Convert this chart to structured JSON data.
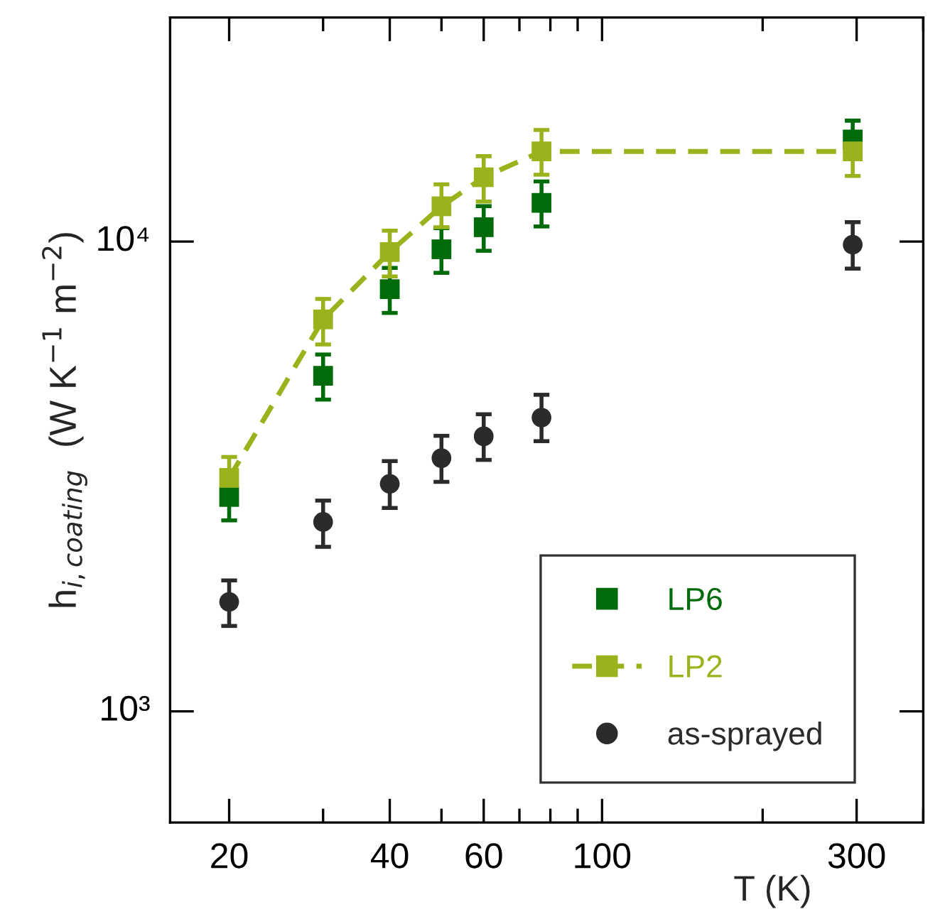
{
  "chart_data": {
    "type": "scatter",
    "xlabel": "T (K)",
    "ylabel": "h$_{i,coating}$  (W K$^{−1}$ m$^{−2}$)",
    "log": "xy",
    "xlim": [
      15.5,
      400
    ],
    "ylim": [
      580,
      30000
    ],
    "xticks": [
      20,
      40,
      60,
      100,
      300
    ],
    "yticks": [
      {
        "value": 1000,
        "label": "10³"
      },
      {
        "value": 10000,
        "label": "10⁴"
      }
    ],
    "grid": false,
    "legend": "bottom right",
    "series": [
      {
        "name": "LP6",
        "marker": "square",
        "color": "#006b0a",
        "x": [
          20,
          30,
          40,
          50,
          60,
          77,
          295
        ],
        "values": [
          2860,
          5180,
          7920,
          9630,
          10730,
          12090,
          16500
        ],
        "errors": [
          [
            2550,
            2860
          ],
          [
            4610,
            5750
          ],
          [
            7050,
            8790
          ],
          [
            8580,
            10680
          ],
          [
            9560,
            11900
          ],
          [
            10770,
            13430
          ],
          [
            16500,
            18090
          ]
        ]
      },
      {
        "name": "LP2",
        "type": "line",
        "marker": "square",
        "line_style": "dashed",
        "color": "#9ab31c",
        "x": [
          20,
          30,
          40,
          50,
          60,
          77,
          295
        ],
        "values": [
          3140,
          6830,
          9500,
          11890,
          13710,
          15560,
          15560
        ],
        "errors": [
          [
            3140,
            3480
          ],
          [
            6040,
            7550
          ],
          [
            8430,
            10550
          ],
          [
            10730,
            13240
          ],
          [
            12170,
            15200
          ],
          [
            13880,
            17280
          ],
          [
            13800,
            15560
          ]
        ]
      },
      {
        "name": "as-sprayed",
        "marker": "circle",
        "color": "#2b2b2b",
        "x": [
          20,
          30,
          40,
          50,
          60,
          77,
          295
        ],
        "values": [
          1710,
          2530,
          3050,
          3460,
          3850,
          4220,
          9850
        ],
        "errors": [
          [
            1520,
            1900
          ],
          [
            2240,
            2810
          ],
          [
            2710,
            3410
          ],
          [
            3080,
            3860
          ],
          [
            3430,
            4290
          ],
          [
            3760,
            4720
          ],
          [
            8760,
            11000
          ]
        ]
      }
    ]
  }
}
